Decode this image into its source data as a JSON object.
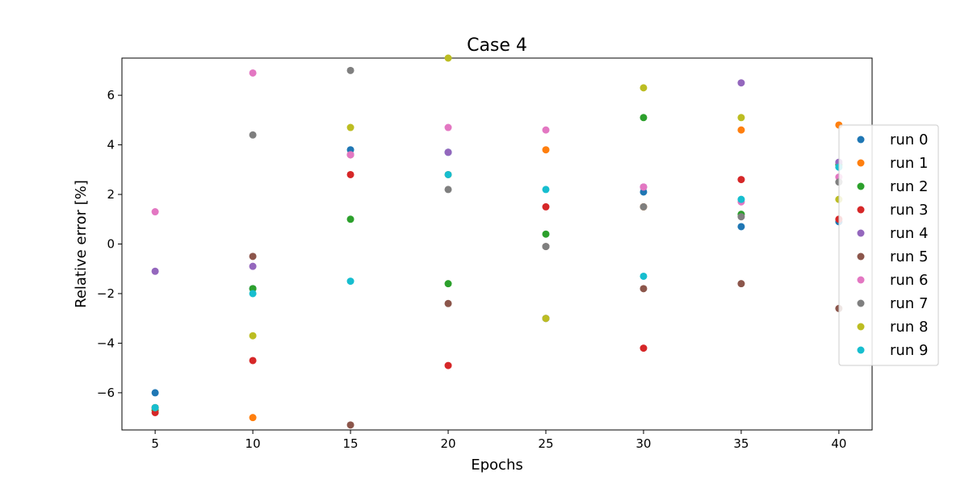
{
  "chart_data": {
    "type": "scatter",
    "title": "Case 4",
    "xlabel": "Epochs",
    "ylabel": "Relative error [%]",
    "x": [
      5,
      10,
      15,
      20,
      25,
      30,
      35,
      40
    ],
    "xticks": [
      5,
      10,
      15,
      20,
      25,
      30,
      35,
      40
    ],
    "yticks": [
      -6,
      -4,
      -2,
      0,
      2,
      4,
      6
    ],
    "xlim": [
      3.3,
      41.7
    ],
    "ylim": [
      -7.5,
      7.5
    ],
    "grid": false,
    "legend_position": "right",
    "series": [
      {
        "name": "run 0",
        "color": "#1f77b4",
        "values": [
          -6.0,
          -1.8,
          3.8,
          3.7,
          -3.0,
          2.1,
          0.7,
          0.9
        ]
      },
      {
        "name": "run 1",
        "color": "#ff7f0e",
        "values": [
          -6.7,
          -7.0,
          3.6,
          2.8,
          3.8,
          1.5,
          4.6,
          4.8
        ]
      },
      {
        "name": "run 2",
        "color": "#2ca02c",
        "values": [
          -6.7,
          -1.8,
          1.0,
          -1.6,
          0.4,
          5.1,
          1.2,
          3.2
        ]
      },
      {
        "name": "run 3",
        "color": "#d62728",
        "values": [
          -6.8,
          -4.7,
          2.8,
          -4.9,
          1.5,
          -4.2,
          2.6,
          1.0
        ]
      },
      {
        "name": "run 4",
        "color": "#9467bd",
        "values": [
          -1.1,
          -0.9,
          3.6,
          3.7,
          -3.0,
          2.3,
          6.5,
          3.3
        ]
      },
      {
        "name": "run 5",
        "color": "#8c564b",
        "values": [
          -6.6,
          -0.5,
          -7.3,
          -2.4,
          -0.1,
          -1.8,
          -1.6,
          -2.6
        ]
      },
      {
        "name": "run 6",
        "color": "#e377c2",
        "values": [
          1.3,
          6.9,
          3.6,
          4.7,
          4.6,
          2.3,
          1.7,
          2.7
        ]
      },
      {
        "name": "run 7",
        "color": "#7f7f7f",
        "values": [
          -6.6,
          4.4,
          7.0,
          2.2,
          -0.1,
          1.5,
          1.1,
          2.5
        ]
      },
      {
        "name": "run 8",
        "color": "#bcbd22",
        "values": [
          -6.6,
          -3.7,
          4.7,
          7.5,
          -3.0,
          6.3,
          5.1,
          1.8
        ]
      },
      {
        "name": "run 9",
        "color": "#17becf",
        "values": [
          -6.6,
          -2.0,
          -1.5,
          2.8,
          2.2,
          -1.3,
          1.8,
          3.1
        ]
      }
    ]
  }
}
